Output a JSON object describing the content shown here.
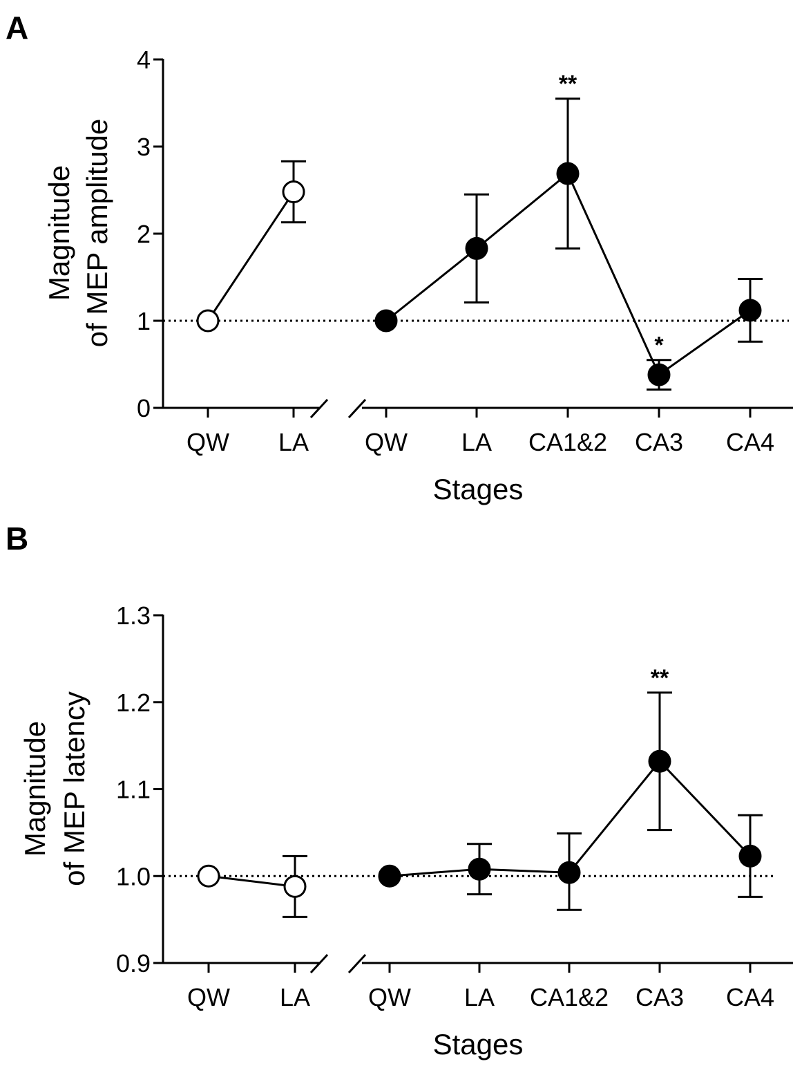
{
  "chart_data": [
    {
      "panel": "A",
      "type": "line",
      "ylabel_line1": "Magnitude",
      "ylabel_line2": "of MEP amplitude",
      "xlabel": "Stages",
      "ylim": [
        0,
        4
      ],
      "yticks": [
        "0",
        "1",
        "2",
        "3",
        "4"
      ],
      "ytick_values": [
        0,
        1,
        2,
        3,
        4
      ],
      "reference_line": 1,
      "groups": [
        {
          "marker": "open",
          "categories": [
            "QW",
            "LA"
          ],
          "values": [
            1.0,
            2.48
          ],
          "err_upper": [
            1.0,
            2.83
          ],
          "err_lower": [
            1.0,
            2.13
          ],
          "annotations": [
            "",
            ""
          ]
        },
        {
          "marker": "filled",
          "categories": [
            "QW",
            "LA",
            "CA1&2",
            "CA3",
            "CA4"
          ],
          "values": [
            1.0,
            1.83,
            2.69,
            0.38,
            1.12
          ],
          "err_upper": [
            1.0,
            2.45,
            3.55,
            0.55,
            1.48
          ],
          "err_lower": [
            1.0,
            1.21,
            1.83,
            0.21,
            0.76
          ],
          "annotations": [
            "",
            "",
            "**",
            "*",
            ""
          ]
        }
      ]
    },
    {
      "panel": "B",
      "type": "line",
      "ylabel_line1": "Magnitude",
      "ylabel_line2": "of MEP latency",
      "xlabel": "Stages",
      "ylim": [
        0.9,
        1.3
      ],
      "yticks": [
        "0.9",
        "1.0",
        "1.1",
        "1.2",
        "1.3"
      ],
      "ytick_values": [
        0.9,
        1.0,
        1.1,
        1.2,
        1.3
      ],
      "reference_line": 1.0,
      "groups": [
        {
          "marker": "open",
          "categories": [
            "QW",
            "LA"
          ],
          "values": [
            1.0,
            0.988
          ],
          "err_upper": [
            1.0,
            1.023
          ],
          "err_lower": [
            1.0,
            0.953
          ],
          "annotations": [
            "",
            ""
          ]
        },
        {
          "marker": "filled",
          "categories": [
            "QW",
            "LA",
            "CA1&2",
            "CA3",
            "CA4"
          ],
          "values": [
            1.0,
            1.008,
            1.004,
            1.132,
            1.023
          ],
          "err_upper": [
            1.0,
            1.037,
            1.049,
            1.211,
            1.07
          ],
          "err_lower": [
            1.0,
            0.979,
            0.961,
            1.053,
            0.976
          ],
          "annotations": [
            "",
            "",
            "",
            "**",
            ""
          ]
        }
      ]
    }
  ]
}
